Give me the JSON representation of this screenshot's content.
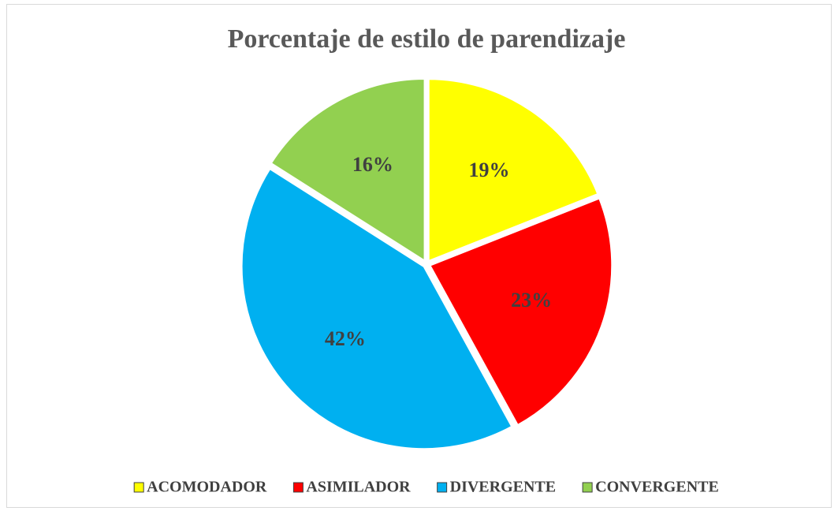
{
  "chart_data": {
    "type": "pie",
    "title": "Porcentaje de estilo de parendizaje",
    "categories": [
      "ACOMODADOR",
      "ASIMILADOR",
      "DIVERGENTE",
      "CONVERGENTE"
    ],
    "values": [
      19,
      23,
      42,
      16
    ],
    "value_labels": [
      "19%",
      "23%",
      "42%",
      "16%"
    ],
    "colors": [
      "#ffff00",
      "#ff0000",
      "#00b0f0",
      "#92d050"
    ],
    "legend": "bottom"
  }
}
